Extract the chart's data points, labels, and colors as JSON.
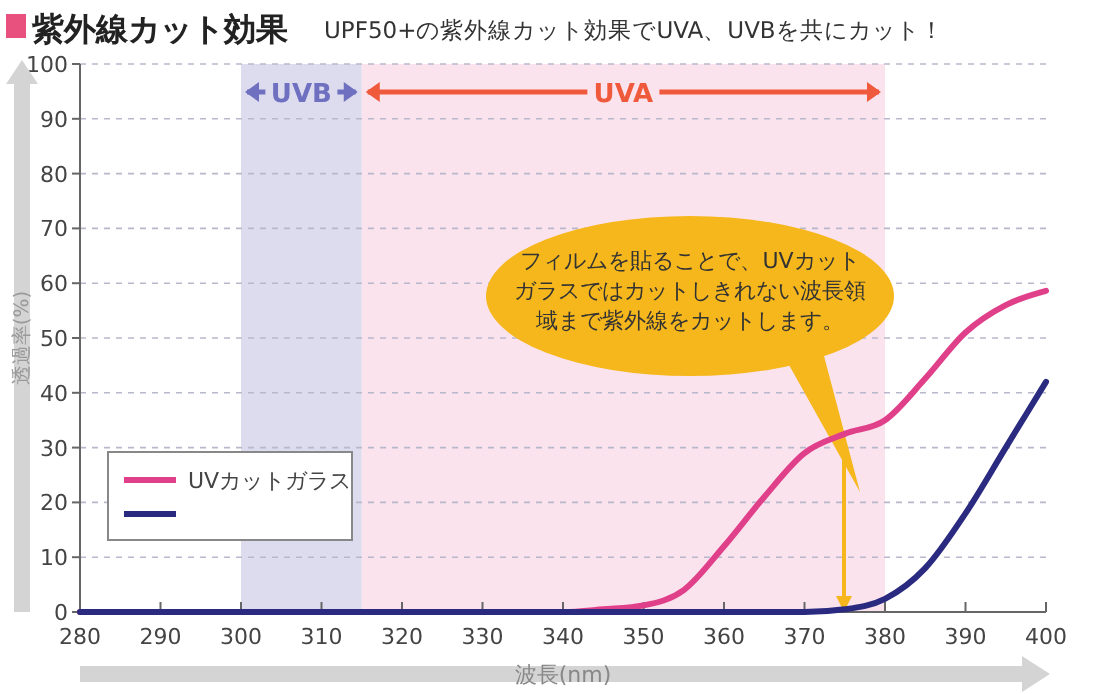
{
  "chart_data": {
    "type": "line",
    "title": "紫外線カット効果",
    "subtitle": "UPF50+の紫外線カット効果でUVA、UVBを共にカット！",
    "xlabel": "波長(nm)",
    "ylabel": "透過率(%)",
    "xlim": [
      280,
      400
    ],
    "xticks": [
      280,
      290,
      300,
      310,
      320,
      330,
      340,
      350,
      360,
      370,
      380,
      390,
      400
    ],
    "ylim": [
      0,
      100
    ],
    "yticks": [
      0,
      10,
      20,
      30,
      40,
      50,
      60,
      70,
      80,
      90,
      100
    ],
    "grid": "y",
    "legend": "bottom left",
    "marker": "none",
    "line_style": "solid",
    "bands": [
      {
        "axis": "x",
        "from": 300,
        "to": 315,
        "label": "UVB",
        "color": "#dcdcee"
      },
      {
        "axis": "x",
        "from": 315,
        "to": 380,
        "label": "UVA",
        "color": "#fbe3ee"
      }
    ],
    "series": [
      {
        "name": "UVカットガラス",
        "color": "#e0408a",
        "x": [
          280,
          340,
          345,
          350,
          355,
          360,
          365,
          370,
          375,
          380,
          385,
          390,
          395,
          400
        ],
        "values": [
          0,
          0,
          0.5,
          1.2,
          4,
          12,
          21,
          29,
          32.5,
          35,
          42.6,
          51,
          56,
          58.6
        ]
      },
      {
        "color": "#2a2a80",
        "x": [
          280,
          370,
          375,
          380,
          385,
          390,
          395,
          400
        ],
        "values": [
          0,
          0,
          0.5,
          2.4,
          8,
          18,
          30,
          42
        ]
      }
    ],
    "annotations": [
      "フィルムを貼ることで、UVカットガラスではカットしきれない波長領域まで紫外線をカットします。"
    ]
  }
}
